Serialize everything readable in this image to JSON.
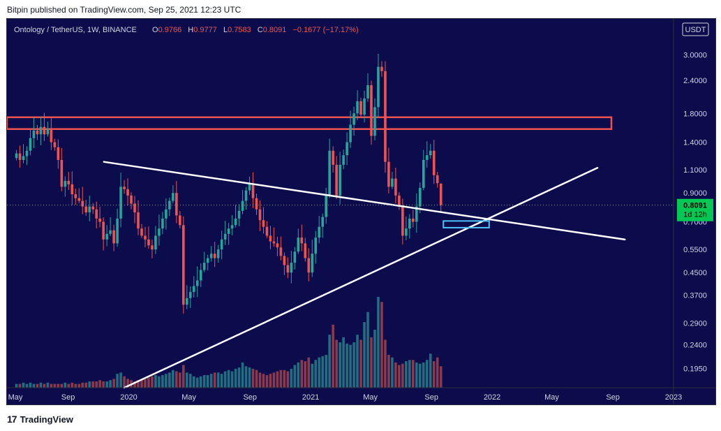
{
  "header": {
    "published": "Bitpin published on TradingView.com, Sep 25, 2021 12:23 UTC"
  },
  "footer": {
    "logo_text": "TradingView",
    "logo_mark": "17"
  },
  "legend": {
    "symbol": "Ontology / TetherUS, 1W, BINANCE",
    "o_label": "O",
    "o": "0.9766",
    "h_label": "H",
    "h": "0.9777",
    "l_label": "L",
    "l": "0.7583",
    "c_label": "C",
    "c": "0.8091",
    "change": "−0.1677 (−17.17%)"
  },
  "colors": {
    "background": "#0c0c4c",
    "up": "#26a69a",
    "down": "#ef5350",
    "price_tag": "#00c853",
    "zone": "#ef5350",
    "target_box": "#4fc3f7",
    "trendline": "#ffffff"
  },
  "price_axis": {
    "currency": "USDT",
    "last_price": "0.8091",
    "countdown": "1d 12h"
  },
  "chart_data": {
    "type": "candlestick",
    "title": "Ontology / TetherUS, 1W, BINANCE",
    "y_scale": "log",
    "ylim": [
      0.165,
      4.1
    ],
    "y_ticks": [
      "3.0000",
      "2.4000",
      "1.8000",
      "1.4000",
      "1.1000",
      "0.9000",
      "0.7000",
      "0.5500",
      "0.4500",
      "0.3700",
      "0.2900",
      "0.2400",
      "0.1950"
    ],
    "x_ticks": [
      "May",
      "Sep",
      "2020",
      "May",
      "Sep",
      "2021",
      "May",
      "Sep",
      "2022",
      "May",
      "Sep",
      "2023"
    ],
    "x_tick_dates": [
      "2019-05-01",
      "2019-09-01",
      "2020-01-01",
      "2020-05-01",
      "2020-09-01",
      "2021-01-01",
      "2021-05-01",
      "2021-09-01",
      "2022-01-01",
      "2022-05-01",
      "2022-09-01",
      "2023-01-01"
    ],
    "xlim": [
      "2019-05-01",
      "2023-01-01"
    ],
    "last_bar": {
      "open": 0.9766,
      "high": 0.9777,
      "low": 0.7583,
      "close": 0.8091
    },
    "closes": [
      1.27,
      1.2,
      1.24,
      1.3,
      1.45,
      1.55,
      1.5,
      1.6,
      1.5,
      1.58,
      1.4,
      1.34,
      1.2,
      0.95,
      1.0,
      0.97,
      0.89,
      0.86,
      0.84,
      0.8,
      0.76,
      0.8,
      0.78,
      0.72,
      0.7,
      0.6,
      0.63,
      0.65,
      0.58,
      0.72,
      0.95,
      0.93,
      0.88,
      0.82,
      0.76,
      0.66,
      0.62,
      0.6,
      0.57,
      0.55,
      0.62,
      0.66,
      0.72,
      0.78,
      0.84,
      0.9,
      0.74,
      0.68,
      0.34,
      0.36,
      0.38,
      0.4,
      0.42,
      0.46,
      0.49,
      0.51,
      0.53,
      0.51,
      0.55,
      0.6,
      0.63,
      0.66,
      0.68,
      0.72,
      0.77,
      0.84,
      0.92,
      0.97,
      0.86,
      0.78,
      0.71,
      0.67,
      0.62,
      0.59,
      0.58,
      0.56,
      0.52,
      0.48,
      0.45,
      0.49,
      0.54,
      0.61,
      0.58,
      0.51,
      0.45,
      0.53,
      0.61,
      0.67,
      0.73,
      0.88,
      1.3,
      1.15,
      0.88,
      1.15,
      1.25,
      1.4,
      1.63,
      1.8,
      2.0,
      1.78,
      2.05,
      2.3,
      1.48,
      1.9,
      2.7,
      2.6,
      1.18,
      0.95,
      1.02,
      0.88,
      0.8,
      0.62,
      0.66,
      0.72,
      0.7,
      0.8,
      0.94,
      1.2,
      1.25,
      1.3,
      1.05,
      0.98,
      0.8091
    ],
    "volumes": [
      3,
      3,
      4,
      3,
      4,
      3,
      3,
      4,
      3,
      4,
      3,
      3,
      3,
      3,
      4,
      3,
      4,
      3,
      3,
      4,
      4,
      5,
      5,
      5,
      6,
      5,
      5,
      6,
      7,
      11,
      12,
      9,
      7,
      6,
      5,
      6,
      6,
      7,
      8,
      9,
      10,
      9,
      10,
      11,
      12,
      14,
      13,
      12,
      18,
      12,
      11,
      9,
      8,
      9,
      10,
      10,
      11,
      12,
      12,
      11,
      13,
      14,
      13,
      15,
      16,
      20,
      17,
      16,
      15,
      14,
      12,
      11,
      10,
      11,
      12,
      13,
      14,
      14,
      13,
      15,
      18,
      20,
      22,
      21,
      24,
      19,
      22,
      24,
      25,
      26,
      42,
      50,
      38,
      36,
      40,
      35,
      34,
      36,
      42,
      38,
      52,
      60,
      40,
      46,
      72,
      68,
      38,
      26,
      24,
      20,
      18,
      19,
      21,
      22,
      22,
      20,
      19,
      20,
      22,
      27,
      21,
      24,
      17
    ],
    "horizontal_zone": {
      "low": 1.57,
      "high": 1.74,
      "from": "2019-05-01",
      "to": "2022-08-29"
    },
    "trendlines": [
      {
        "from": {
          "date": "2019-11-12",
          "price": 1.18
        },
        "to": {
          "date": "2022-09-25",
          "price": 0.6
        }
      },
      {
        "from": {
          "date": "2019-12-23",
          "price": 0.165
        },
        "to": {
          "date": "2022-08-01",
          "price": 1.12
        }
      }
    ],
    "target_box": {
      "from": "2021-09-25",
      "to": "2021-12-26",
      "low": 0.665,
      "high": 0.705
    }
  }
}
